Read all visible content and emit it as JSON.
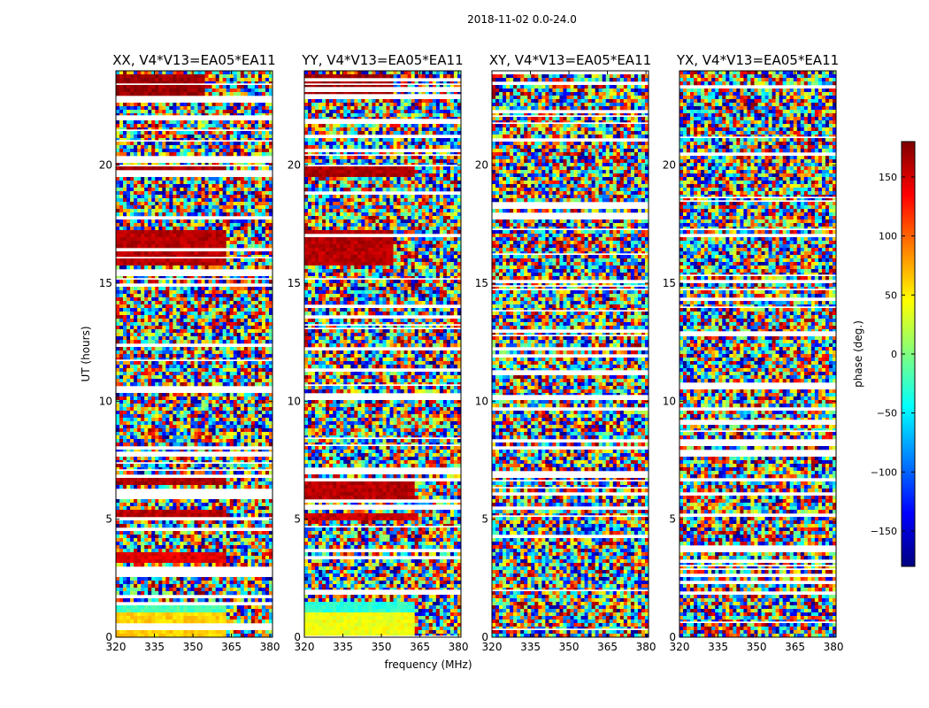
{
  "figure": {
    "suptitle": "2018-11-02 0.0-24.0",
    "xlabel": "frequency (MHz)",
    "ylabel": "UT (hours)"
  },
  "colorbar": {
    "label": "phase (deg.)",
    "range": [
      -180,
      180
    ],
    "ticks": [
      150,
      100,
      50,
      0,
      -50,
      -100,
      -150
    ],
    "tick_labels": [
      "150",
      "100",
      "50",
      "0",
      "−50",
      "−100",
      "−150"
    ],
    "colormap": [
      "#00007f",
      "#0000ff",
      "#007fff",
      "#00ffff",
      "#7fff7f",
      "#ffff00",
      "#ff7f00",
      "#ff0000",
      "#7f0000"
    ]
  },
  "chart_data": [
    {
      "type": "heatmap",
      "title": "XX, V4*V13=EA05*EA11",
      "xlim": [
        320,
        381
      ],
      "ylim": [
        0,
        24
      ],
      "xticks": [
        320,
        335,
        350,
        365,
        380
      ],
      "yticks": [
        0,
        5,
        10,
        15,
        20
      ],
      "coherent_ranges": [
        {
          "t": [
            0.0,
            1.1
          ],
          "f": [
            320,
            363
          ],
          "phase": 60
        },
        {
          "t": [
            1.1,
            1.3
          ],
          "f": [
            320,
            363
          ],
          "phase": -20
        },
        {
          "t": [
            3.2,
            3.6
          ],
          "f": [
            320,
            363
          ],
          "phase": 145
        },
        {
          "t": [
            4.9,
            5.4
          ],
          "f": [
            320,
            363
          ],
          "phase": 160
        },
        {
          "t": [
            6.4,
            6.8
          ],
          "f": [
            320,
            363
          ],
          "phase": 165
        },
        {
          "t": [
            15.8,
            17.3
          ],
          "f": [
            320,
            363
          ],
          "phase": 160
        },
        {
          "t": [
            19.5,
            20.0
          ],
          "f": [
            320,
            363
          ],
          "phase": 165
        },
        {
          "t": [
            22.8,
            23.8
          ],
          "f": [
            320,
            355
          ],
          "phase": 170
        }
      ]
    },
    {
      "type": "heatmap",
      "title": "YY, V4*V13=EA05*EA11",
      "xlim": [
        320,
        381
      ],
      "ylim": [
        0,
        24
      ],
      "xticks": [
        320,
        335,
        350,
        365,
        380
      ],
      "yticks": [
        0,
        5,
        10,
        15,
        20
      ],
      "coherent_ranges": [
        {
          "t": [
            0.0,
            1.1
          ],
          "f": [
            320,
            363
          ],
          "phase": 40
        },
        {
          "t": [
            1.1,
            1.5
          ],
          "f": [
            320,
            363
          ],
          "phase": -30
        },
        {
          "t": [
            4.9,
            5.3
          ],
          "f": [
            320,
            363
          ],
          "phase": 155
        },
        {
          "t": [
            5.8,
            6.8
          ],
          "f": [
            320,
            363
          ],
          "phase": 160
        },
        {
          "t": [
            15.8,
            17.3
          ],
          "f": [
            320,
            355
          ],
          "phase": 160
        },
        {
          "t": [
            19.5,
            20.0
          ],
          "f": [
            320,
            363
          ],
          "phase": 165
        },
        {
          "t": [
            22.8,
            23.8
          ],
          "f": [
            320,
            355
          ],
          "phase": 170
        }
      ]
    },
    {
      "type": "heatmap",
      "title": "XY, V4*V13=EA05*EA11",
      "xlim": [
        320,
        381
      ],
      "ylim": [
        0,
        24
      ],
      "xticks": [
        320,
        335,
        350,
        365,
        380
      ],
      "yticks": [
        0,
        5,
        10,
        15,
        20
      ],
      "coherent_ranges": []
    },
    {
      "type": "heatmap",
      "title": "YX, V4*V13=EA05*EA11",
      "xlim": [
        320,
        381
      ],
      "ylim": [
        0,
        24
      ],
      "xticks": [
        320,
        335,
        350,
        365,
        380
      ],
      "yticks": [
        0,
        5,
        10,
        15,
        20
      ],
      "coherent_ranges": []
    }
  ]
}
